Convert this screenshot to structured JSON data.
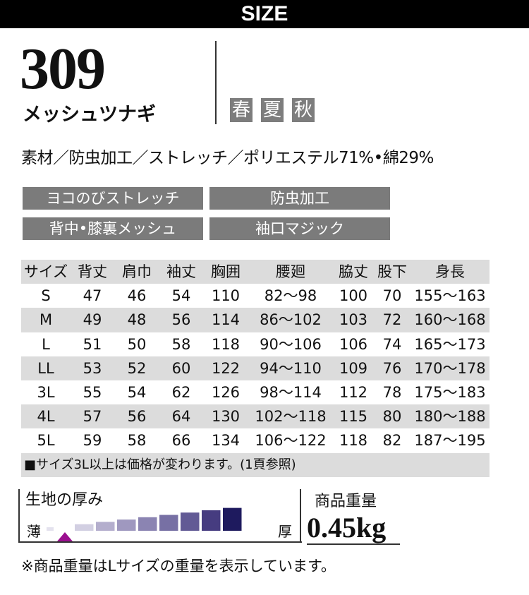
{
  "header": {
    "title": "SIZE"
  },
  "product": {
    "model": "309",
    "name": "メッシュツナギ",
    "seasons": [
      "春",
      "夏",
      "秋"
    ],
    "material": "素材／防虫加工／ストレッチ／ポリエステル71%•綿29%",
    "features": [
      "ヨコのびストレッチ",
      "防虫加工",
      "背中•膝裏メッシュ",
      "袖口マジック"
    ]
  },
  "size_table": {
    "headers": [
      "サイズ",
      "背丈",
      "肩巾",
      "袖丈",
      "胸囲",
      "腰廻",
      "脇丈",
      "股下",
      "身長"
    ],
    "rows": [
      [
        "S",
        "47",
        "46",
        "54",
        "110",
        "82〜98",
        "100",
        "70",
        "155〜163"
      ],
      [
        "M",
        "49",
        "48",
        "56",
        "114",
        "86〜102",
        "103",
        "72",
        "160〜168"
      ],
      [
        "L",
        "51",
        "50",
        "58",
        "118",
        "90〜106",
        "106",
        "74",
        "165〜173"
      ],
      [
        "LL",
        "53",
        "52",
        "60",
        "122",
        "94〜110",
        "109",
        "76",
        "170〜178"
      ],
      [
        "3L",
        "55",
        "54",
        "62",
        "126",
        "98〜114",
        "112",
        "78",
        "175〜183"
      ],
      [
        "4L",
        "57",
        "56",
        "64",
        "130",
        "102〜118",
        "115",
        "80",
        "180〜188"
      ],
      [
        "5L",
        "59",
        "58",
        "66",
        "134",
        "106〜122",
        "118",
        "82",
        "187〜195"
      ]
    ],
    "note": "■サイズ3L以上は価格が変わります。(1頁参照)"
  },
  "thickness": {
    "label": "生地の厚み",
    "thin": "薄",
    "thick": "厚",
    "level": 1,
    "levels": 9,
    "marker_color": "#9b0f8f",
    "bar_colors": [
      "#e4e2ee",
      "#d2cfe2",
      "#b4aecd",
      "#9f98bf",
      "#8b84b2",
      "#7770a4",
      "#625a95",
      "#463c80",
      "#1e1a5e"
    ]
  },
  "weight": {
    "label": "商品重量",
    "value": "0.45kg"
  },
  "footer": "※商品重量はLサイズの重量を表示しています。"
}
